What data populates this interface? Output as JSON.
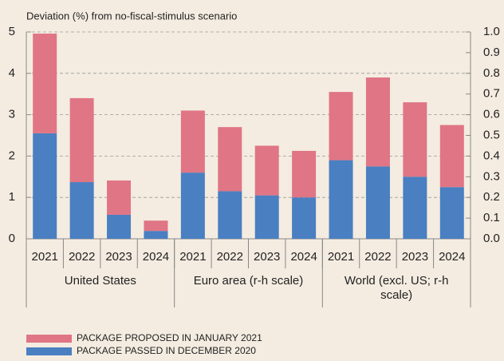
{
  "chart_data": {
    "type": "stacked_bar",
    "subtitle": "Deviation (%) from no-fiscal-stimulus scenario",
    "categories": [
      "2021",
      "2022",
      "2023",
      "2024",
      "2021",
      "2022",
      "2023",
      "2024",
      "2021",
      "2022",
      "2023",
      "2024"
    ],
    "groups": [
      {
        "name": "United States",
        "axis": "y",
        "size": 4
      },
      {
        "name": "Euro area (r-h scale)",
        "axis": "y2",
        "size": 4
      },
      {
        "name": "World (excl. US; r-h scale)",
        "axis": "y2",
        "size": 4
      }
    ],
    "series": [
      {
        "name": "PACKAGE PASSED IN DECEMBER 2020",
        "color": "#4a7fc1",
        "values": [
          2.55,
          1.37,
          0.58,
          0.19,
          0.32,
          0.23,
          0.21,
          0.2,
          0.38,
          0.35,
          0.3,
          0.25
        ]
      },
      {
        "name": "PACKAGE PROPOSED IN JANUARY 2021",
        "color": "#e07585",
        "values": [
          2.41,
          2.03,
          0.83,
          0.25,
          0.3,
          0.31,
          0.24,
          0.225,
          0.33,
          0.43,
          0.36,
          0.3
        ]
      }
    ],
    "ylim": [
      0,
      5
    ],
    "yticks": [
      0,
      1,
      2,
      3,
      4,
      5
    ],
    "y2lim": [
      0,
      1
    ],
    "y2ticks": [
      {
        "value": 0,
        "label": "0.0"
      },
      0.1,
      0.2,
      0.3,
      0.4,
      0.5,
      0.6,
      0.7,
      0.8,
      0.9,
      {
        "value": 1,
        "label": "1.0"
      }
    ],
    "grid": true
  }
}
